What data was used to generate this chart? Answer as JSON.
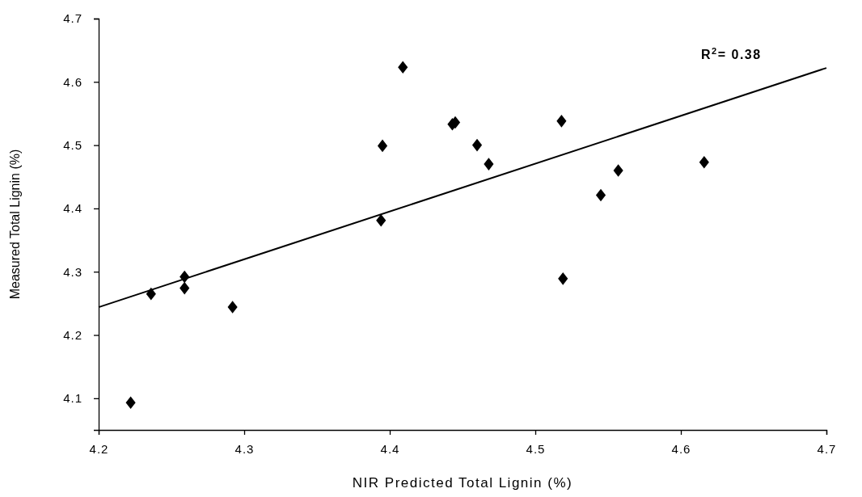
{
  "chart_data": {
    "type": "scatter",
    "xlabel": "NIR Predicted Total Lignin (%)",
    "ylabel": "Measured Total Lignin (%)",
    "xlim": [
      4.2,
      4.7
    ],
    "xticks": [
      4.2,
      4.3,
      4.4,
      4.5,
      4.6,
      4.7
    ],
    "ylim": [
      4.05,
      4.7
    ],
    "yticks": [
      4.1,
      4.2,
      4.3,
      4.4,
      4.5,
      4.6,
      4.7
    ],
    "grid": false,
    "marker": "diamond",
    "annotations": [
      "R$^{2}$= 0.38"
    ],
    "series": [
      {
        "color": "#000000",
        "x": [
          4.222,
          4.236,
          4.259,
          4.259,
          4.292,
          4.394,
          4.395,
          4.409,
          4.443,
          4.445,
          4.46,
          4.468,
          4.518,
          4.519,
          4.545,
          4.557,
          4.616
        ],
        "values": [
          4.093,
          4.265,
          4.292,
          4.274,
          4.244,
          4.381,
          4.499,
          4.623,
          4.533,
          4.536,
          4.5,
          4.47,
          4.538,
          4.289,
          4.421,
          4.46,
          4.473
        ]
      },
      {
        "type": "line",
        "color": "#000000",
        "marker": "none",
        "line_style": "solid",
        "x": [
          4.2,
          4.7
        ],
        "values": [
          4.244,
          4.622
        ]
      }
    ]
  }
}
